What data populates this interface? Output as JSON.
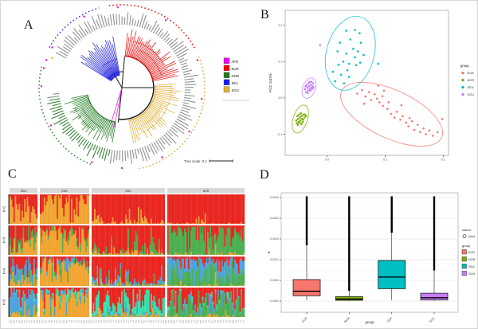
{
  "figure": {
    "background": "#ffffff",
    "border_color": "#d6d6d6"
  },
  "panels": {
    "A": {
      "letter": "A",
      "legend": {
        "items": [
          {
            "label": "AFR",
            "color": "#ee00ee"
          },
          {
            "label": "EUR",
            "color": "#f50000"
          },
          {
            "label": "NOR",
            "color": "#1f7a1f"
          },
          {
            "label": "SEA",
            "color": "#1a1aee"
          },
          {
            "label": "SOU",
            "color": "#e6b32e"
          }
        ]
      },
      "tree_scale": {
        "label": "Tree scale: 0.1",
        "value": 0.1
      }
    },
    "B": {
      "letter": "B"
    },
    "C": {
      "letter": "C"
    },
    "D": {
      "letter": "D"
    }
  },
  "chart_data": [
    {
      "id": "A",
      "type": "circular-phylogenetic-tree",
      "legend": [
        "AFR",
        "EUR",
        "NOR",
        "SEA",
        "SOU"
      ],
      "tree_scale_label": "Tree scale: 0.1",
      "clades": [
        {
          "name": "SEA",
          "color": "#2222dd",
          "a0": -148,
          "a1": -100,
          "tips": 22,
          "r_in": 16,
          "r_out": 64,
          "seed": 3
        },
        {
          "name": "EUR",
          "color": "#ee1111",
          "a0": -84,
          "a1": -12,
          "tips": 36,
          "r_in": 40,
          "r_out": 72,
          "seed": 5
        },
        {
          "name": "SOU",
          "color": "#e3ab2d",
          "a0": -4,
          "a1": 78,
          "tips": 34,
          "r_in": 42,
          "r_out": 70,
          "seed": 7
        },
        {
          "name": "NOR",
          "color": "#237c23",
          "a0": 100,
          "a1": 168,
          "tips": 36,
          "r_in": 44,
          "r_out": 72,
          "seed": 9
        },
        {
          "name": "AFR",
          "color": "#e619e6",
          "a0": 101,
          "a1": 107,
          "tips": 2,
          "r_in": 2,
          "r_out": 52,
          "seed": 11
        }
      ],
      "dotted_arcs": [
        {
          "name": "SEA",
          "color": "#3333ee",
          "a0": -151,
          "a1": -106,
          "r": 104
        },
        {
          "name": "EUR",
          "color": "#f50505",
          "a0": -99,
          "a1": -27,
          "r": 104
        },
        {
          "name": "SOU",
          "color": "#e3ab2d",
          "a0": -22,
          "a1": 85,
          "r": 104
        },
        {
          "name": "NOR",
          "color": "#2f8c2f",
          "a0": 112,
          "a1": 196,
          "r": 104
        }
      ],
      "scatter_dot_angles": [
        -160,
        -150,
        -118,
        -93,
        -57,
        -20,
        8,
        33,
        60,
        90,
        112,
        152,
        181,
        194
      ],
      "scatter_dot_color": "#e619e6"
    },
    {
      "id": "B",
      "type": "scatter",
      "xlabel": "PC1: 19.59%",
      "ylabel": "PC2: 9.02%",
      "xlim": [
        -0.072,
        0.209
      ],
      "ylim": [
        -0.158,
        0.241
      ],
      "xticks": [
        0.0,
        0.1,
        0.2
      ],
      "xtick_labels": [
        "0.0",
        "0.1",
        "0.2"
      ],
      "yticks": [
        -0.1,
        0.0,
        0.1,
        0.2
      ],
      "ytick_labels": [
        "-0.1",
        "0.0",
        "0.1",
        "0.2"
      ],
      "legend_title": "group",
      "series": [
        {
          "name": "EUR",
          "color": "#F8766D",
          "ellipse": {
            "cx": 0.111,
            "cy": -0.045,
            "rx": 0.095,
            "ry": 0.066,
            "rot": 25
          },
          "points": [
            [
              0.052,
              0.012
            ],
            [
              0.06,
              0.022
            ],
            [
              0.066,
              0.004
            ],
            [
              0.072,
              0.016
            ],
            [
              0.076,
              -0.006
            ],
            [
              0.082,
              0.01
            ],
            [
              0.086,
              -0.002
            ],
            [
              0.09,
              -0.012
            ],
            [
              0.098,
              0.02
            ],
            [
              0.096,
              -0.022
            ],
            [
              0.104,
              -0.03
            ],
            [
              0.11,
              -0.044
            ],
            [
              0.116,
              -0.054
            ],
            [
              0.12,
              -0.038
            ],
            [
              0.126,
              -0.06
            ],
            [
              0.13,
              -0.05
            ],
            [
              0.136,
              -0.068
            ],
            [
              0.14,
              -0.078
            ],
            [
              0.146,
              -0.064
            ],
            [
              0.15,
              -0.088
            ],
            [
              0.156,
              -0.074
            ],
            [
              0.16,
              -0.094
            ],
            [
              0.166,
              -0.084
            ],
            [
              0.17,
              -0.1
            ],
            [
              0.176,
              -0.09
            ],
            [
              0.182,
              -0.104
            ],
            [
              0.19,
              -0.094
            ],
            [
              0.198,
              -0.058
            ],
            [
              0.128,
              -0.02
            ],
            [
              0.088,
              0.034
            ],
            [
              0.064,
              -0.016
            ],
            [
              0.106,
              -0.012
            ],
            [
              0.142,
              -0.055
            ],
            [
              0.095,
              0.005
            ]
          ]
        },
        {
          "name": "NOR",
          "color": "#7CAE00",
          "ellipse": {
            "cx": -0.046,
            "cy": -0.058,
            "rx": 0.0123,
            "ry": 0.04,
            "rot": 18
          },
          "points": [
            [
              -0.052,
              -0.07
            ],
            [
              -0.049,
              -0.066
            ],
            [
              -0.046,
              -0.062
            ],
            [
              -0.043,
              -0.058
            ],
            [
              -0.05,
              -0.058
            ],
            [
              -0.047,
              -0.054
            ],
            [
              -0.044,
              -0.05
            ],
            [
              -0.041,
              -0.046
            ],
            [
              -0.048,
              -0.046
            ],
            [
              -0.045,
              -0.042
            ],
            [
              -0.053,
              -0.062
            ],
            [
              -0.042,
              -0.066
            ],
            [
              -0.039,
              -0.054
            ],
            [
              -0.051,
              -0.05
            ],
            [
              -0.044,
              -0.072
            ],
            [
              -0.038,
              -0.046
            ],
            [
              -0.047,
              -0.068
            ],
            [
              -0.05,
              -0.074
            ],
            [
              -0.041,
              -0.06
            ],
            [
              -0.036,
              -0.05
            ]
          ]
        },
        {
          "name": "SEA",
          "color": "#00BFC4",
          "ellipse": {
            "cx": 0.04,
            "cy": 0.123,
            "rx": 0.041,
            "ry": 0.104,
            "rot": 15
          },
          "points": [
            [
              0.033,
              0.185
            ],
            [
              0.048,
              0.187
            ],
            [
              0.056,
              0.178
            ],
            [
              0.022,
              0.152
            ],
            [
              0.04,
              0.161
            ],
            [
              0.058,
              0.152
            ],
            [
              0.018,
              0.128
            ],
            [
              0.033,
              0.122
            ],
            [
              0.048,
              0.112
            ],
            [
              0.063,
              0.118
            ],
            [
              0.028,
              0.1
            ],
            [
              0.038,
              0.094
            ],
            [
              0.05,
              0.09
            ],
            [
              0.057,
              0.097
            ],
            [
              0.01,
              0.072
            ],
            [
              0.024,
              0.064
            ],
            [
              0.038,
              0.058
            ],
            [
              0.014,
              0.046
            ],
            [
              0.029,
              0.04
            ],
            [
              0.088,
              0.094
            ],
            [
              0.045,
              0.135
            ],
            [
              0.053,
              0.128
            ],
            [
              0.035,
              0.076
            ],
            [
              0.02,
              0.091
            ]
          ]
        },
        {
          "name": "SOU",
          "color": "#C77CFF",
          "ellipse": {
            "cx": -0.031,
            "cy": 0.027,
            "rx": 0.011,
            "ry": 0.029,
            "rot": 20
          },
          "points": [
            [
              -0.036,
              0.016
            ],
            [
              -0.033,
              0.02
            ],
            [
              -0.03,
              0.024
            ],
            [
              -0.027,
              0.028
            ],
            [
              -0.034,
              0.028
            ],
            [
              -0.031,
              0.032
            ],
            [
              -0.028,
              0.036
            ],
            [
              -0.025,
              0.032
            ],
            [
              -0.035,
              0.036
            ],
            [
              -0.032,
              0.04
            ],
            [
              -0.029,
              0.02
            ],
            [
              -0.026,
              0.024
            ],
            [
              -0.038,
              0.024
            ],
            [
              -0.024,
              0.04
            ],
            [
              -0.03,
              0.044
            ],
            [
              -0.027,
              0.044
            ],
            [
              -0.037,
              0.032
            ],
            [
              -0.023,
              0.028
            ],
            [
              -0.012,
              0.145
            ],
            [
              -0.033,
              0.013
            ]
          ]
        }
      ]
    },
    {
      "id": "C",
      "type": "admixture-stacked-bar",
      "groups": [
        "SEA",
        "EUR",
        "SOU",
        "NOR"
      ],
      "group_widths": [
        35,
        62,
        92,
        97
      ],
      "colors": {
        "orange": "#f0a431",
        "green": "#4bae4f",
        "blue": "#4aa3e0",
        "turquoise": "#32e2ad",
        "red": "#e8251f"
      },
      "stack_order": [
        "orange",
        "green",
        "blue",
        "turquoise",
        "red"
      ],
      "rows": [
        {
          "label": "K=2",
          "comp": {
            "SEA": [
              0.5,
              0,
              0,
              0,
              0.5
            ],
            "EUR": [
              0.8,
              0,
              0,
              0,
              0.2
            ],
            "SOU": [
              0.05,
              0,
              0,
              0,
              0.95
            ],
            "NOR": [
              0.01,
              0,
              0,
              0,
              0.99
            ]
          }
        },
        {
          "label": "K=3",
          "comp": {
            "SEA": [
              0.4,
              0.18,
              0,
              0,
              0.42
            ],
            "EUR": [
              0.72,
              0.12,
              0,
              0,
              0.16
            ],
            "SOU": [
              0.04,
              0.1,
              0,
              0,
              0.86
            ],
            "NOR": [
              0.02,
              0.72,
              0,
              0,
              0.26
            ]
          }
        },
        {
          "label": "K=4",
          "comp": {
            "SEA": [
              0.22,
              0.14,
              0.28,
              0,
              0.36
            ],
            "EUR": [
              0.72,
              0.07,
              0.07,
              0,
              0.14
            ],
            "SOU": [
              0.03,
              0.03,
              0.1,
              0,
              0.84
            ],
            "NOR": [
              0.02,
              0.42,
              0.42,
              0,
              0.14
            ]
          }
        },
        {
          "label": "K=5",
          "comp": {
            "SEA": [
              0.12,
              0.04,
              0.55,
              0.06,
              0.23
            ],
            "EUR": [
              0.68,
              0.04,
              0.1,
              0.06,
              0.12
            ],
            "SOU": [
              0.05,
              0.02,
              0.04,
              0.38,
              0.51
            ],
            "NOR": [
              0.02,
              0.52,
              0.08,
              0.05,
              0.33
            ]
          }
        }
      ]
    },
    {
      "id": "D",
      "type": "box",
      "xlabel": "group",
      "ylabel": "π",
      "ylim": [
        0,
        0.0026
      ],
      "yticks": [
        0,
        0.0005,
        0.001,
        0.0015,
        0.002,
        0.0025
      ],
      "ytick_labels": [
        "0.0000",
        "0.0005",
        "0.0010",
        "0.0015",
        "0.0020",
        "0.0025"
      ],
      "xtick_labels": [
        "EUR",
        "NOR",
        "SEA",
        "SOU"
      ],
      "legend": {
        "colour_title": "colour",
        "colour_items": [
          {
            "label": "black",
            "color": "#000000"
          }
        ],
        "group_title": "group",
        "group_items": [
          {
            "label": "EUR",
            "color": "#F8766D"
          },
          {
            "label": "NOR",
            "color": "#7CAE00"
          },
          {
            "label": "SEA",
            "color": "#00BFC4"
          },
          {
            "label": "SOU",
            "color": "#C77CFF"
          }
        ]
      },
      "boxes": [
        {
          "group": "EUR",
          "color": "#F8766D",
          "q1": 0.00013,
          "median": 0.00024,
          "q3": 0.00052,
          "whisker_low": 2e-05,
          "outliers_from": 0.00135,
          "outliers_to": 0.00253
        },
        {
          "group": "NOR",
          "color": "#7CAE00",
          "q1": 2e-05,
          "median": 5e-05,
          "q3": 0.00011,
          "whisker_low": 5e-06,
          "outliers_from": 0.00025,
          "outliers_to": 0.00253
        },
        {
          "group": "SEA",
          "color": "#00BFC4",
          "q1": 0.0003,
          "median": 0.00058,
          "q3": 0.00098,
          "whisker_low": 2e-05,
          "outliers_from": 0.00165,
          "outliers_to": 0.00253
        },
        {
          "group": "SOU",
          "color": "#C77CFF",
          "q1": 3e-05,
          "median": 8e-05,
          "q3": 0.00019,
          "whisker_low": 5e-06,
          "outliers_from": 0.00074,
          "outliers_to": 0.00253
        }
      ]
    }
  ]
}
